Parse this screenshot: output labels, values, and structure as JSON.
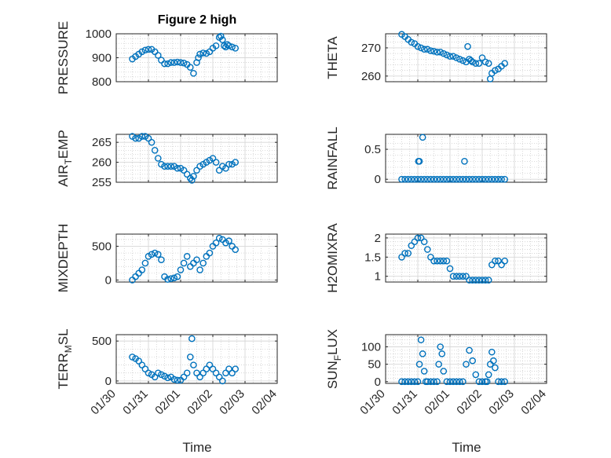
{
  "figure": {
    "title": "Figure 2 high",
    "xlabel": "Time"
  },
  "colors": {
    "marker": "#0072BD",
    "axes": "#262626",
    "grid": "#d7d7d7",
    "minor_grid": "#c8c8c8"
  },
  "x_ticks": [
    "01/30",
    "01/31",
    "02/01",
    "02/02",
    "02/03",
    "02/04"
  ],
  "chart_data": [
    {
      "type": "scatter",
      "ylabel": "PRESSURE",
      "ylabel_sub": "",
      "ylabel_tail": "",
      "ylim": [
        800,
        1000
      ],
      "yticks": [
        800,
        900,
        1000
      ],
      "yticklabels": [
        "800",
        "900",
        "1000"
      ],
      "xlim_days": [
        0,
        5
      ],
      "show_xtick_labels": false,
      "x": [
        0.5,
        0.6,
        0.7,
        0.8,
        0.9,
        1.0,
        1.1,
        1.2,
        1.3,
        1.4,
        1.5,
        1.6,
        1.7,
        1.8,
        1.9,
        2.0,
        2.1,
        2.2,
        2.3,
        2.4,
        2.5,
        2.55,
        2.6,
        2.7,
        2.8,
        2.9,
        3.0,
        3.1,
        3.2,
        3.25,
        3.3,
        3.35,
        3.4,
        3.45,
        3.5,
        3.6,
        3.7
      ],
      "y": [
        895,
        905,
        915,
        925,
        932,
        935,
        935,
        925,
        910,
        890,
        875,
        875,
        880,
        880,
        882,
        880,
        878,
        872,
        860,
        835,
        880,
        900,
        915,
        920,
        918,
        925,
        940,
        950,
        985,
        990,
        975,
        950,
        945,
        955,
        950,
        945,
        940
      ]
    },
    {
      "type": "scatter",
      "ylabel": "THETA",
      "ylabel_sub": "",
      "ylabel_tail": "",
      "ylim": [
        258,
        275
      ],
      "yticks": [
        260,
        270
      ],
      "yticklabels": [
        "260",
        "270"
      ],
      "xlim_days": [
        0,
        5
      ],
      "show_xtick_labels": false,
      "x": [
        0.5,
        0.6,
        0.7,
        0.8,
        0.9,
        1.0,
        1.1,
        1.2,
        1.3,
        1.4,
        1.5,
        1.6,
        1.7,
        1.8,
        1.9,
        2.0,
        2.1,
        2.2,
        2.3,
        2.4,
        2.5,
        2.55,
        2.6,
        2.65,
        2.7,
        2.8,
        2.9,
        3.0,
        3.1,
        3.2,
        3.25,
        3.3,
        3.4,
        3.5,
        3.6,
        3.7
      ],
      "y": [
        274.8,
        274,
        273,
        272,
        271.5,
        270.5,
        270,
        269.5,
        269.5,
        269,
        268.8,
        268.5,
        268.5,
        268,
        267.5,
        267,
        267,
        266.5,
        266,
        265.5,
        265,
        270.5,
        266,
        265.5,
        265,
        264.5,
        264.5,
        266.5,
        265,
        264.5,
        259,
        261,
        262,
        262.5,
        263.5,
        264.5
      ]
    },
    {
      "type": "scatter",
      "ylabel": "AIR",
      "ylabel_sub": "T",
      "ylabel_tail": "EMP",
      "ylim": [
        255,
        267
      ],
      "yticks": [
        255,
        260,
        265
      ],
      "yticklabels": [
        "255",
        "260",
        "265"
      ],
      "xlim_days": [
        0,
        5
      ],
      "show_xtick_labels": false,
      "x": [
        0.5,
        0.6,
        0.7,
        0.8,
        0.9,
        1.0,
        1.1,
        1.2,
        1.3,
        1.4,
        1.5,
        1.6,
        1.7,
        1.8,
        1.9,
        2.0,
        2.1,
        2.2,
        2.3,
        2.35,
        2.4,
        2.5,
        2.6,
        2.7,
        2.8,
        2.9,
        3.0,
        3.1,
        3.2,
        3.3,
        3.4,
        3.5,
        3.6,
        3.7
      ],
      "y": [
        266.5,
        266,
        266,
        266.5,
        266.5,
        266,
        265,
        263,
        261,
        259.5,
        259,
        259,
        259,
        259,
        258.5,
        258.5,
        258,
        257,
        256,
        255.5,
        256.5,
        258,
        259,
        259.5,
        260,
        260.5,
        261,
        260,
        258,
        259,
        258.5,
        259.5,
        259.5,
        260
      ]
    },
    {
      "type": "scatter",
      "ylabel": "RAINFALL",
      "ylabel_sub": "",
      "ylabel_tail": "",
      "ylim": [
        -0.05,
        0.75
      ],
      "yticks": [
        0,
        0.5
      ],
      "yticklabels": [
        "0",
        "0.5"
      ],
      "xlim_days": [
        0,
        5
      ],
      "show_xtick_labels": false,
      "x": [
        0.5,
        0.6,
        0.7,
        0.8,
        0.9,
        1.0,
        1.02,
        1.05,
        1.1,
        1.15,
        1.2,
        1.3,
        1.4,
        1.5,
        1.6,
        1.7,
        1.8,
        1.9,
        2.0,
        2.1,
        2.2,
        2.3,
        2.4,
        2.45,
        2.5,
        2.6,
        2.7,
        2.8,
        2.9,
        3.0,
        3.1,
        3.2,
        3.3,
        3.4,
        3.5,
        3.6,
        3.7
      ],
      "y": [
        0,
        0,
        0,
        0,
        0,
        0,
        0.3,
        0.3,
        0,
        0.7,
        0,
        0,
        0,
        0,
        0,
        0,
        0,
        0,
        0,
        0,
        0,
        0,
        0,
        0.3,
        0,
        0,
        0,
        0,
        0,
        0,
        0,
        0,
        0,
        0,
        0,
        0,
        0
      ]
    },
    {
      "type": "scatter",
      "ylabel": "MIXDEPTH",
      "ylabel_sub": "",
      "ylabel_tail": "",
      "ylim": [
        -30,
        680
      ],
      "yticks": [
        0,
        500
      ],
      "yticklabels": [
        "0",
        "500"
      ],
      "xlim_days": [
        0,
        5
      ],
      "show_xtick_labels": false,
      "x": [
        0.5,
        0.6,
        0.7,
        0.8,
        0.9,
        1.0,
        1.1,
        1.2,
        1.3,
        1.4,
        1.5,
        1.6,
        1.7,
        1.8,
        1.9,
        2.0,
        2.1,
        2.2,
        2.3,
        2.4,
        2.5,
        2.6,
        2.7,
        2.8,
        2.9,
        3.0,
        3.1,
        3.2,
        3.3,
        3.4,
        3.5,
        3.6,
        3.7
      ],
      "y": [
        0,
        50,
        100,
        150,
        250,
        350,
        380,
        400,
        380,
        300,
        50,
        10,
        20,
        30,
        50,
        150,
        250,
        350,
        200,
        250,
        300,
        150,
        250,
        350,
        400,
        500,
        550,
        620,
        600,
        550,
        580,
        500,
        450
      ]
    },
    {
      "type": "scatter",
      "ylabel": "H2OMIXRA",
      "ylabel_sub": "",
      "ylabel_tail": "",
      "ylim": [
        0.85,
        2.1
      ],
      "yticks": [
        1,
        1.5,
        2
      ],
      "yticklabels": [
        "1",
        "1.5",
        "2"
      ],
      "xlim_days": [
        0,
        5
      ],
      "show_xtick_labels": false,
      "x": [
        0.5,
        0.6,
        0.7,
        0.8,
        0.9,
        1.0,
        1.1,
        1.2,
        1.3,
        1.4,
        1.5,
        1.6,
        1.7,
        1.8,
        1.9,
        2.0,
        2.1,
        2.2,
        2.3,
        2.4,
        2.5,
        2.6,
        2.7,
        2.8,
        2.9,
        3.0,
        3.1,
        3.2,
        3.3,
        3.4,
        3.5,
        3.6,
        3.7
      ],
      "y": [
        1.5,
        1.6,
        1.6,
        1.8,
        1.9,
        2.0,
        2.0,
        1.9,
        1.7,
        1.5,
        1.4,
        1.4,
        1.4,
        1.4,
        1.4,
        1.2,
        1.0,
        1.0,
        1.0,
        1.0,
        1.0,
        0.9,
        0.9,
        0.9,
        0.9,
        0.9,
        0.9,
        0.9,
        1.3,
        1.4,
        1.4,
        1.3,
        1.4
      ]
    },
    {
      "type": "scatter",
      "ylabel": "TERR",
      "ylabel_sub": "M",
      "ylabel_tail": "SL",
      "ylim": [
        -30,
        580
      ],
      "yticks": [
        0,
        500
      ],
      "yticklabels": [
        "0",
        "500"
      ],
      "xlim_days": [
        0,
        5
      ],
      "show_xtick_labels": true,
      "x": [
        0.5,
        0.6,
        0.7,
        0.8,
        0.9,
        1.0,
        1.1,
        1.2,
        1.3,
        1.4,
        1.5,
        1.6,
        1.7,
        1.8,
        1.9,
        2.0,
        2.1,
        2.2,
        2.3,
        2.35,
        2.4,
        2.5,
        2.6,
        2.7,
        2.8,
        2.9,
        3.0,
        3.1,
        3.2,
        3.3,
        3.4,
        3.5,
        3.6,
        3.7
      ],
      "y": [
        300,
        280,
        250,
        200,
        150,
        100,
        80,
        50,
        100,
        80,
        60,
        40,
        50,
        20,
        10,
        10,
        50,
        100,
        300,
        530,
        200,
        100,
        50,
        100,
        150,
        200,
        150,
        100,
        50,
        0,
        100,
        150,
        100,
        150
      ]
    },
    {
      "type": "scatter",
      "ylabel": "SUN",
      "ylabel_sub": "F",
      "ylabel_tail": "LUX",
      "ylim": [
        -5,
        135
      ],
      "yticks": [
        0,
        50,
        100
      ],
      "yticklabels": [
        "0",
        "50",
        "100"
      ],
      "xlim_days": [
        0,
        5
      ],
      "show_xtick_labels": true,
      "x": [
        0.5,
        0.6,
        0.7,
        0.8,
        0.9,
        1.0,
        1.05,
        1.1,
        1.15,
        1.2,
        1.25,
        1.3,
        1.4,
        1.5,
        1.6,
        1.65,
        1.7,
        1.75,
        1.8,
        1.9,
        2.0,
        2.1,
        2.2,
        2.3,
        2.4,
        2.5,
        2.6,
        2.7,
        2.8,
        2.9,
        3.0,
        3.1,
        3.15,
        3.2,
        3.25,
        3.3,
        3.35,
        3.4,
        3.5,
        3.6,
        3.7
      ],
      "y": [
        0,
        0,
        0,
        0,
        0,
        0,
        50,
        120,
        80,
        30,
        0,
        0,
        0,
        0,
        0,
        50,
        100,
        80,
        30,
        0,
        0,
        0,
        0,
        0,
        0,
        50,
        90,
        60,
        20,
        0,
        0,
        0,
        0,
        20,
        50,
        85,
        60,
        40,
        0,
        0,
        0
      ]
    }
  ]
}
